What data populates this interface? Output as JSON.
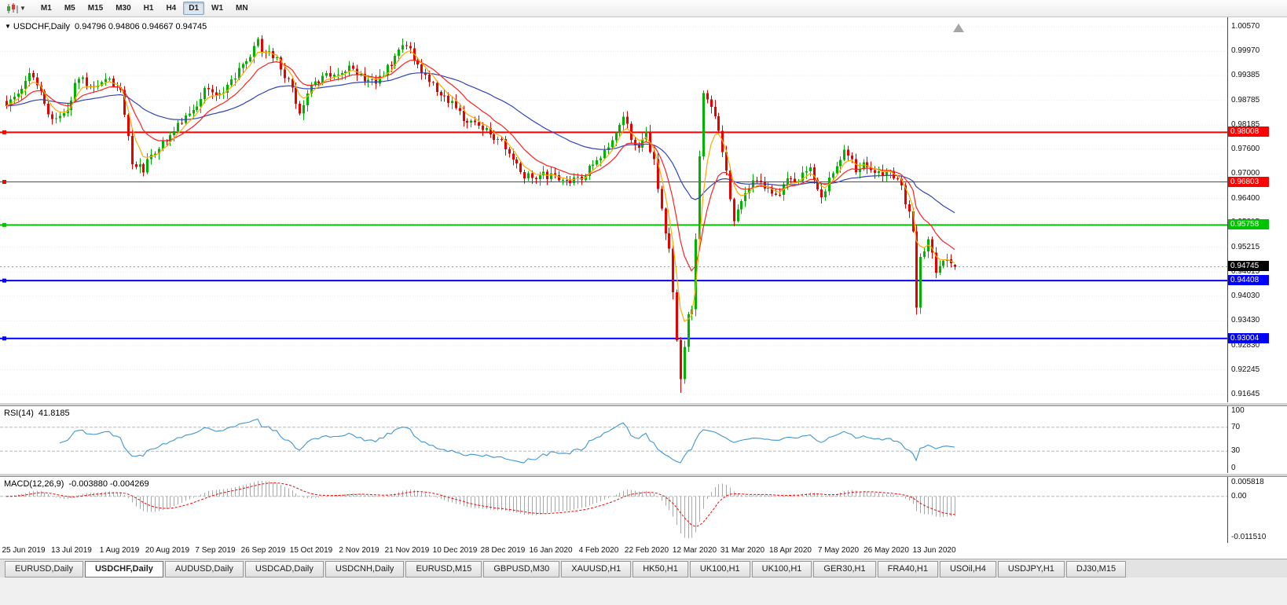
{
  "toolbar": {
    "timeframes": [
      {
        "label": "M1",
        "active": false
      },
      {
        "label": "M5",
        "active": false
      },
      {
        "label": "M15",
        "active": false
      },
      {
        "label": "M30",
        "active": false
      },
      {
        "label": "H1",
        "active": false
      },
      {
        "label": "H4",
        "active": false
      },
      {
        "label": "D1",
        "active": true
      },
      {
        "label": "W1",
        "active": false
      },
      {
        "label": "MN",
        "active": false
      }
    ]
  },
  "chart": {
    "caret": "▼",
    "title": "USDCHF,Daily",
    "ohlc": "0.94796 0.94806 0.94667 0.94745",
    "price_axis": {
      "min": 0.91645,
      "max": 1.0057,
      "ticks": [
        1.0057,
        0.9997,
        0.99385,
        0.98785,
        0.98185,
        0.976,
        0.97,
        0.964,
        0.95815,
        0.95215,
        0.94615,
        0.9403,
        0.9343,
        0.9283,
        0.92245,
        0.91645
      ]
    },
    "hlines": [
      {
        "price": 0.98008,
        "label": "0.98008",
        "color": "#ff0000",
        "width": 2
      },
      {
        "price": 0.96803,
        "label": "0.96803",
        "color": "#ff0000",
        "width": 1
      },
      {
        "price": 0.95758,
        "label": "0.95758",
        "color": "#00c400",
        "width": 2
      },
      {
        "price": 0.94408,
        "label": "0.94408",
        "color": "#0000ff",
        "width": 2
      },
      {
        "price": 0.93004,
        "label": "0.93004",
        "color": "#0000ff",
        "width": 2
      }
    ],
    "current_price": {
      "value": 0.94745,
      "label": "0.94745",
      "badge_color": "#000000",
      "line_color": "#999999"
    },
    "colors": {
      "up": "#00b300",
      "down": "#e60000",
      "ma_fast": "#ffaa00",
      "ma_mid": "#ff2020",
      "ma_slow": "#3344bb",
      "grid": "#e9e9e9"
    },
    "dates": [
      "25 Jun 2019",
      "13 Jul 2019",
      "1 Aug 2019",
      "20 Aug 2019",
      "7 Sep 2019",
      "26 Sep 2019",
      "15 Oct 2019",
      "2 Nov 2019",
      "21 Nov 2019",
      "10 Dec 2019",
      "28 Dec 2019",
      "16 Jan 2020",
      "4 Feb 2020",
      "22 Feb 2020",
      "12 Mar 2020",
      "31 Mar 2020",
      "18 Apr 2020",
      "7 May 2020",
      "26 May 2020",
      "13 Jun 2020"
    ]
  },
  "chart_data": {
    "type": "candlestick",
    "symbol": "USDCHF",
    "timeframe": "Daily",
    "open": 0.94796,
    "high": 0.94806,
    "low": 0.94667,
    "close": 0.94745,
    "bars": 250,
    "ylim": [
      0.91645,
      1.0057
    ],
    "levels": [
      0.98008,
      0.96803,
      0.95758,
      0.94408,
      0.93004
    ],
    "price_path_anchors": [
      [
        0,
        0.986
      ],
      [
        3,
        0.9895
      ],
      [
        6,
        0.994
      ],
      [
        8,
        0.9922
      ],
      [
        10,
        0.988
      ],
      [
        12,
        0.9826
      ],
      [
        14,
        0.9845
      ],
      [
        16,
        0.9862
      ],
      [
        19,
        0.9935
      ],
      [
        22,
        0.9905
      ],
      [
        25,
        0.9928
      ],
      [
        28,
        0.9916
      ],
      [
        30,
        0.9905
      ],
      [
        32,
        0.98
      ],
      [
        33,
        0.9732
      ],
      [
        36,
        0.9713
      ],
      [
        39,
        0.976
      ],
      [
        43,
        0.9797
      ],
      [
        46,
        0.9828
      ],
      [
        50,
        0.9873
      ],
      [
        53,
        0.9912
      ],
      [
        56,
        0.9895
      ],
      [
        59,
        0.993
      ],
      [
        62,
        0.9962
      ],
      [
        66,
        1.0018
      ],
      [
        68,
        0.9995
      ],
      [
        71,
        0.9975
      ],
      [
        74,
        0.992
      ],
      [
        77,
        0.9856
      ],
      [
        80,
        0.991
      ],
      [
        84,
        0.9935
      ],
      [
        88,
        0.9952
      ],
      [
        90,
        0.9965
      ],
      [
        93,
        0.9942
      ],
      [
        96,
        0.9922
      ],
      [
        99,
        0.9945
      ],
      [
        102,
        0.9985
      ],
      [
        104,
        1.0008
      ],
      [
        106,
        1.0
      ],
      [
        109,
        0.9945
      ],
      [
        112,
        0.9912
      ],
      [
        114,
        0.9893
      ],
      [
        117,
        0.9875
      ],
      [
        120,
        0.9836
      ],
      [
        123,
        0.9822
      ],
      [
        126,
        0.9808
      ],
      [
        129,
        0.9785
      ],
      [
        132,
        0.975
      ],
      [
        134,
        0.9718
      ],
      [
        136,
        0.9694
      ],
      [
        139,
        0.9684
      ],
      [
        141,
        0.9698
      ],
      [
        144,
        0.9692
      ],
      [
        147,
        0.9675
      ],
      [
        150,
        0.9688
      ],
      [
        153,
        0.971
      ],
      [
        156,
        0.9735
      ],
      [
        158,
        0.976
      ],
      [
        160,
        0.9806
      ],
      [
        162,
        0.9836
      ],
      [
        164,
        0.9788
      ],
      [
        166,
        0.977
      ],
      [
        168,
        0.9795
      ],
      [
        170,
        0.9732
      ],
      [
        172,
        0.9608
      ],
      [
        174,
        0.9512
      ],
      [
        176,
        0.93
      ],
      [
        177,
        0.9192
      ],
      [
        178,
        0.929
      ],
      [
        179,
        0.9352
      ],
      [
        180,
        0.9382
      ],
      [
        181,
        0.9532
      ],
      [
        182,
        0.975
      ],
      [
        183,
        0.989
      ],
      [
        185,
        0.9862
      ],
      [
        187,
        0.98
      ],
      [
        189,
        0.9703
      ],
      [
        191,
        0.959
      ],
      [
        193,
        0.9636
      ],
      [
        196,
        0.9684
      ],
      [
        199,
        0.9665
      ],
      [
        202,
        0.9646
      ],
      [
        205,
        0.9684
      ],
      [
        208,
        0.9693
      ],
      [
        211,
        0.972
      ],
      [
        214,
        0.9646
      ],
      [
        217,
        0.9712
      ],
      [
        220,
        0.9758
      ],
      [
        223,
        0.9713
      ],
      [
        226,
        0.9722
      ],
      [
        229,
        0.9703
      ],
      [
        232,
        0.9712
      ],
      [
        235,
        0.9665
      ],
      [
        237,
        0.9608
      ],
      [
        238,
        0.956
      ],
      [
        239,
        0.9382
      ],
      [
        240,
        0.9495
      ],
      [
        242,
        0.9532
      ],
      [
        244,
        0.9467
      ],
      [
        246,
        0.9495
      ],
      [
        248,
        0.9482
      ],
      [
        249,
        0.94745
      ]
    ]
  },
  "rsi": {
    "name": "RSI(14)",
    "value": "41.8185",
    "period": 14,
    "ticks": [
      "100",
      "70",
      "30",
      "0"
    ],
    "levels": [
      70,
      30
    ],
    "range": [
      0,
      100
    ],
    "color": "#3f96d2"
  },
  "macd": {
    "name": "MACD(12,26,9)",
    "values": "-0.003880 -0.004269",
    "fast": 12,
    "slow": 26,
    "signal": 9,
    "ticks": [
      "0.005818",
      "0.00",
      "-0.011510"
    ],
    "range": [
      -0.01151,
      0.005818
    ],
    "hist_color": "#a9a9a9",
    "signal_color": "#ff0000"
  },
  "tabs": [
    {
      "label": "EURUSD,Daily",
      "active": false
    },
    {
      "label": "USDCHF,Daily",
      "active": true
    },
    {
      "label": "AUDUSD,Daily",
      "active": false
    },
    {
      "label": "USDCAD,Daily",
      "active": false
    },
    {
      "label": "USDCNH,Daily",
      "active": false
    },
    {
      "label": "EURUSD,M15",
      "active": false
    },
    {
      "label": "GBPUSD,M30",
      "active": false
    },
    {
      "label": "XAUUSD,H1",
      "active": false
    },
    {
      "label": "HK50,H1",
      "active": false
    },
    {
      "label": "UK100,H1",
      "active": false
    },
    {
      "label": "UK100,H1",
      "active": false
    },
    {
      "label": "GER30,H1",
      "active": false
    },
    {
      "label": "FRA40,H1",
      "active": false
    },
    {
      "label": "USOil,H4",
      "active": false
    },
    {
      "label": "USDJPY,H1",
      "active": false
    },
    {
      "label": "DJ30,M15",
      "active": false
    }
  ]
}
